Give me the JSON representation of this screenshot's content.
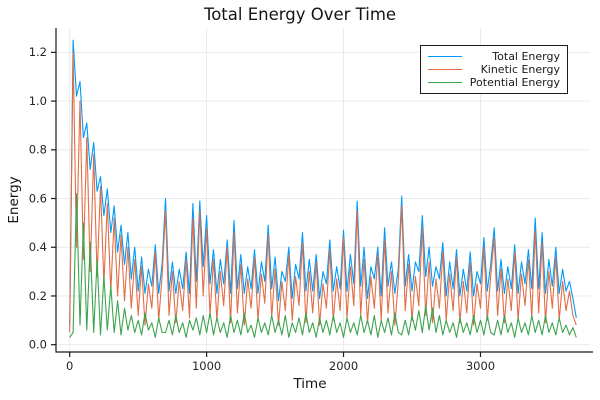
{
  "chart_data": {
    "type": "line",
    "title": "Total Energy Over Time",
    "xlabel": "Time",
    "ylabel": "Energy",
    "xlim": [
      -100,
      3800
    ],
    "ylim": [
      -0.03,
      1.3
    ],
    "xtick_values": [
      0,
      1000,
      2000,
      3000
    ],
    "xtick_labels": [
      "0",
      "1000",
      "2000",
      "3000"
    ],
    "ytick_values": [
      0.0,
      0.2,
      0.4,
      0.6,
      0.8,
      1.0,
      1.2
    ],
    "ytick_labels": [
      "0.0",
      "0.2",
      "0.4",
      "0.6",
      "0.8",
      "1.0",
      "1.2"
    ],
    "grid": true,
    "grid_color": "#e8e8e8",
    "spine_color": "#1a1a1a",
    "legend_position": "top-right",
    "x_start": 0,
    "x_step": 25,
    "series": [
      {
        "name": "Total Energy",
        "color": "#009af9",
        "values": [
          0.08,
          1.25,
          1.02,
          1.08,
          0.85,
          0.91,
          0.72,
          0.83,
          0.63,
          0.69,
          0.53,
          0.64,
          0.46,
          0.57,
          0.38,
          0.49,
          0.33,
          0.46,
          0.27,
          0.4,
          0.22,
          0.36,
          0.21,
          0.31,
          0.24,
          0.41,
          0.21,
          0.33,
          0.6,
          0.22,
          0.34,
          0.21,
          0.31,
          0.23,
          0.38,
          0.21,
          0.58,
          0.26,
          0.59,
          0.32,
          0.53,
          0.25,
          0.39,
          0.21,
          0.35,
          0.25,
          0.43,
          0.21,
          0.51,
          0.23,
          0.37,
          0.21,
          0.32,
          0.23,
          0.39,
          0.21,
          0.34,
          0.26,
          0.49,
          0.23,
          0.36,
          0.18,
          0.3,
          0.26,
          0.4,
          0.19,
          0.33,
          0.27,
          0.46,
          0.22,
          0.35,
          0.22,
          0.37,
          0.19,
          0.3,
          0.25,
          0.43,
          0.22,
          0.32,
          0.23,
          0.47,
          0.22,
          0.37,
          0.25,
          0.59,
          0.24,
          0.4,
          0.19,
          0.32,
          0.27,
          0.4,
          0.2,
          0.48,
          0.24,
          0.34,
          0.21,
          0.31,
          0.61,
          0.24,
          0.37,
          0.22,
          0.34,
          0.3,
          0.53,
          0.28,
          0.4,
          0.24,
          0.32,
          0.27,
          0.42,
          0.2,
          0.34,
          0.23,
          0.39,
          0.2,
          0.31,
          0.22,
          0.38,
          0.2,
          0.3,
          0.25,
          0.44,
          0.22,
          0.33,
          0.48,
          0.22,
          0.35,
          0.21,
          0.32,
          0.23,
          0.41,
          0.21,
          0.34,
          0.25,
          0.39,
          0.23,
          0.52,
          0.23,
          0.46,
          0.21,
          0.35,
          0.24,
          0.4,
          0.21,
          0.31,
          0.22,
          0.26,
          0.19,
          0.11
        ]
      },
      {
        "name": "Kinetic Energy",
        "color": "#e26e47",
        "values": [
          0.05,
          1.2,
          0.4,
          1.0,
          0.35,
          0.85,
          0.3,
          0.78,
          0.28,
          0.65,
          0.25,
          0.58,
          0.22,
          0.52,
          0.2,
          0.45,
          0.18,
          0.4,
          0.15,
          0.35,
          0.12,
          0.32,
          0.08,
          0.25,
          0.15,
          0.38,
          0.1,
          0.28,
          0.55,
          0.12,
          0.3,
          0.09,
          0.26,
          0.14,
          0.35,
          0.11,
          0.52,
          0.15,
          0.55,
          0.2,
          0.48,
          0.12,
          0.35,
          0.1,
          0.3,
          0.16,
          0.4,
          0.09,
          0.46,
          0.13,
          0.33,
          0.08,
          0.27,
          0.15,
          0.36,
          0.1,
          0.29,
          0.17,
          0.45,
          0.11,
          0.31,
          0.08,
          0.26,
          0.14,
          0.37,
          0.1,
          0.28,
          0.16,
          0.42,
          0.09,
          0.3,
          0.13,
          0.34,
          0.08,
          0.25,
          0.15,
          0.39,
          0.1,
          0.27,
          0.14,
          0.44,
          0.11,
          0.32,
          0.16,
          0.55,
          0.12,
          0.35,
          0.09,
          0.28,
          0.15,
          0.37,
          0.1,
          0.43,
          0.13,
          0.3,
          0.08,
          0.26,
          0.57,
          0.14,
          0.33,
          0.1,
          0.28,
          0.16,
          0.48,
          0.12,
          0.34,
          0.09,
          0.27,
          0.15,
          0.38,
          0.1,
          0.29,
          0.14,
          0.36,
          0.09,
          0.26,
          0.13,
          0.34,
          0.08,
          0.25,
          0.15,
          0.4,
          0.1,
          0.28,
          0.44,
          0.12,
          0.31,
          0.09,
          0.27,
          0.14,
          0.38,
          0.1,
          0.29,
          0.16,
          0.35,
          0.11,
          0.47,
          0.13,
          0.42,
          0.09,
          0.3,
          0.15,
          0.36,
          0.1,
          0.26,
          0.14,
          0.22,
          0.12,
          0.08
        ]
      },
      {
        "name": "Potential Energy",
        "color": "#3da44e",
        "values": [
          0.03,
          0.05,
          0.62,
          0.08,
          0.5,
          0.06,
          0.42,
          0.05,
          0.35,
          0.04,
          0.28,
          0.06,
          0.24,
          0.05,
          0.18,
          0.04,
          0.15,
          0.06,
          0.12,
          0.05,
          0.1,
          0.04,
          0.13,
          0.06,
          0.09,
          0.03,
          0.11,
          0.05,
          0.05,
          0.1,
          0.04,
          0.12,
          0.05,
          0.09,
          0.03,
          0.1,
          0.06,
          0.11,
          0.04,
          0.12,
          0.05,
          0.13,
          0.04,
          0.11,
          0.05,
          0.09,
          0.03,
          0.12,
          0.05,
          0.1,
          0.04,
          0.13,
          0.05,
          0.08,
          0.03,
          0.11,
          0.05,
          0.09,
          0.04,
          0.12,
          0.05,
          0.1,
          0.04,
          0.12,
          0.03,
          0.09,
          0.05,
          0.11,
          0.04,
          0.13,
          0.05,
          0.09,
          0.03,
          0.11,
          0.05,
          0.1,
          0.04,
          0.12,
          0.05,
          0.09,
          0.03,
          0.11,
          0.05,
          0.09,
          0.04,
          0.12,
          0.05,
          0.1,
          0.04,
          0.12,
          0.03,
          0.1,
          0.05,
          0.11,
          0.04,
          0.13,
          0.05,
          0.04,
          0.1,
          0.04,
          0.12,
          0.06,
          0.14,
          0.05,
          0.16,
          0.06,
          0.15,
          0.05,
          0.12,
          0.04,
          0.1,
          0.05,
          0.09,
          0.03,
          0.11,
          0.05,
          0.09,
          0.04,
          0.12,
          0.05,
          0.1,
          0.04,
          0.12,
          0.05,
          0.04,
          0.1,
          0.04,
          0.12,
          0.05,
          0.09,
          0.03,
          0.11,
          0.05,
          0.09,
          0.04,
          0.12,
          0.05,
          0.1,
          0.04,
          0.12,
          0.05,
          0.09,
          0.04,
          0.11,
          0.05,
          0.08,
          0.04,
          0.07,
          0.03
        ]
      }
    ]
  }
}
